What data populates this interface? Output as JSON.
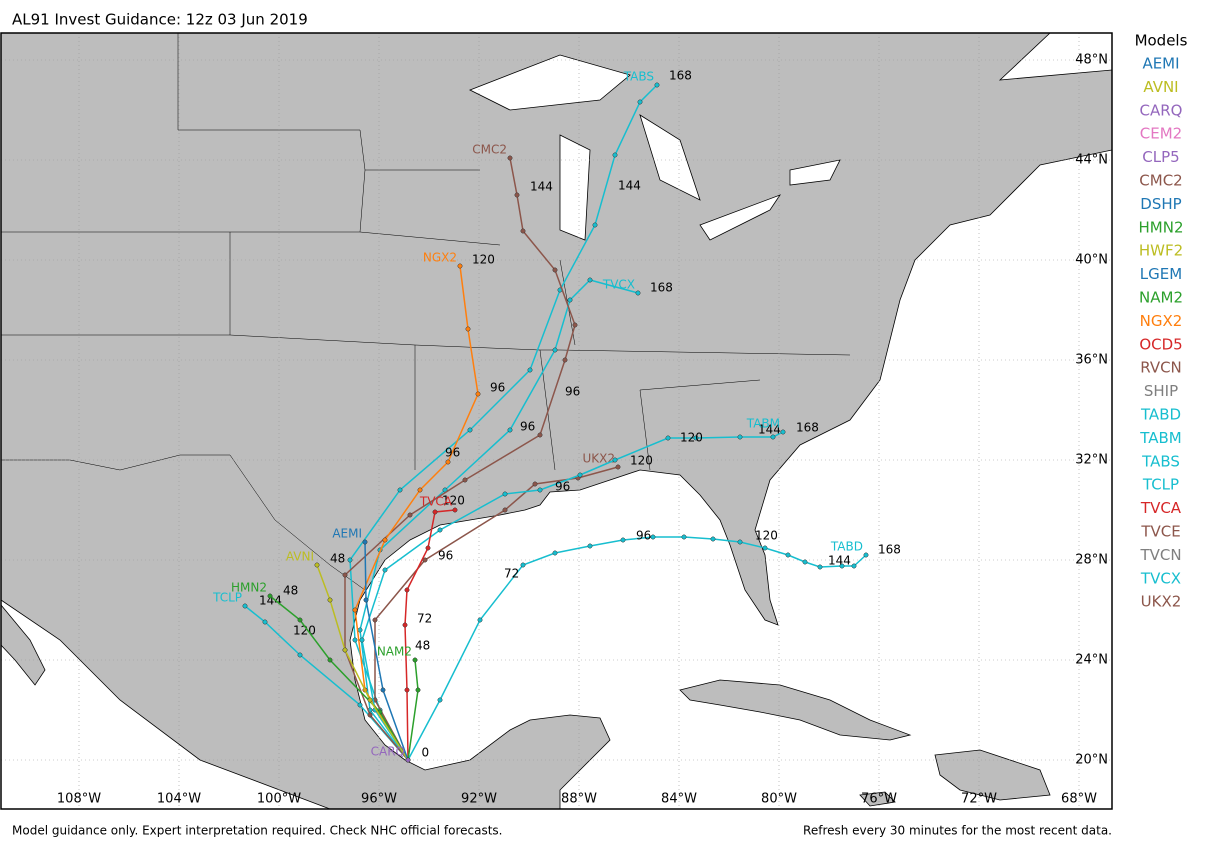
{
  "title": "AL91 Invest Guidance: 12z 03 Jun 2019",
  "legend_title": "Models",
  "models": [
    {
      "name": "AEMI",
      "color": "#1f77b4"
    },
    {
      "name": "AVNI",
      "color": "#bcbd22"
    },
    {
      "name": "CARQ",
      "color": "#9467bd"
    },
    {
      "name": "CEM2",
      "color": "#e377c2"
    },
    {
      "name": "CLP5",
      "color": "#9467bd"
    },
    {
      "name": "CMC2",
      "color": "#8c564b"
    },
    {
      "name": "DSHP",
      "color": "#1f77b4"
    },
    {
      "name": "HMN2",
      "color": "#2ca02c"
    },
    {
      "name": "HWF2",
      "color": "#bcbd22"
    },
    {
      "name": "LGEM",
      "color": "#1f77b4"
    },
    {
      "name": "NAM2",
      "color": "#2ca02c"
    },
    {
      "name": "NGX2",
      "color": "#ff7f0e"
    },
    {
      "name": "OCD5",
      "color": "#d62728"
    },
    {
      "name": "RVCN",
      "color": "#8c564b"
    },
    {
      "name": "SHIP",
      "color": "#7f7f7f"
    },
    {
      "name": "TABD",
      "color": "#17becf"
    },
    {
      "name": "TABM",
      "color": "#17becf"
    },
    {
      "name": "TABS",
      "color": "#17becf"
    },
    {
      "name": "TCLP",
      "color": "#17becf"
    },
    {
      "name": "TVCA",
      "color": "#d62728"
    },
    {
      "name": "TVCE",
      "color": "#8c564b"
    },
    {
      "name": "TVCN",
      "color": "#7f7f7f"
    },
    {
      "name": "TVCX",
      "color": "#17becf"
    },
    {
      "name": "UKX2",
      "color": "#8c564b"
    }
  ],
  "lonlim": [
    -111.12,
    -66.68
  ],
  "latlim": [
    18.04,
    49.08
  ],
  "lon_ticks": [
    {
      "value": -108,
      "label": "108°W"
    },
    {
      "value": -104,
      "label": "104°W"
    },
    {
      "value": -100,
      "label": "100°W"
    },
    {
      "value": -96,
      "label": "96°W"
    },
    {
      "value": -92,
      "label": "92°W"
    },
    {
      "value": -88,
      "label": "88°W"
    },
    {
      "value": -84,
      "label": "84°W"
    },
    {
      "value": -80,
      "label": "80°W"
    },
    {
      "value": -76,
      "label": "76°W"
    },
    {
      "value": -72,
      "label": "72°W"
    },
    {
      "value": -68,
      "label": "68°W"
    }
  ],
  "lat_ticks": [
    {
      "value": 20,
      "label": "20°N"
    },
    {
      "value": 24,
      "label": "24°N"
    },
    {
      "value": 28,
      "label": "28°N"
    },
    {
      "value": 32,
      "label": "32°N"
    },
    {
      "value": 36,
      "label": "36°N"
    },
    {
      "value": 40,
      "label": "40°N"
    },
    {
      "value": 44,
      "label": "44°N"
    },
    {
      "value": 48,
      "label": "48°N"
    }
  ],
  "tracks": [
    {
      "name": "TABS",
      "color": "#17becf",
      "lons": [
        -94.84,
        -95.96,
        -96.96,
        -97.16,
        -95.16,
        -92.36,
        -89.96,
        -88.76,
        -87.36,
        -86.56,
        -85.56,
        -84.88
      ],
      "lats": [
        20.0,
        22.0,
        24.8,
        28.0,
        30.8,
        33.2,
        35.6,
        38.8,
        41.4,
        44.2,
        46.32,
        47.0
      ],
      "labels": [
        {
          "text": "96",
          "lon": -90.36,
          "lat": 33.32
        },
        {
          "text": "144",
          "lon": -86.44,
          "lat": 42.96
        },
        {
          "text": "168",
          "lon": -84.4,
          "lat": 47.36
        }
      ]
    },
    {
      "name": "TCLP",
      "color": "#17becf",
      "lons": [
        -94.84,
        -96.76,
        -99.16,
        -100.56,
        -101.36
      ],
      "lats": [
        20.0,
        22.2,
        24.2,
        25.52,
        26.16
      ],
      "labels": [
        {
          "text": "120",
          "lon": -99.44,
          "lat": 25.16
        },
        {
          "text": "144",
          "lon": -100.8,
          "lat": 26.36
        }
      ]
    },
    {
      "name": "TVCX",
      "color": "#17becf",
      "lons": [
        -94.84,
        -96.36,
        -96.76,
        -95.96,
        -93.36,
        -90.76,
        -88.96,
        -88.36,
        -87.56,
        -85.64
      ],
      "lats": [
        20.0,
        22.0,
        25.2,
        28.4,
        30.8,
        33.2,
        36.4,
        38.4,
        39.2,
        38.68
      ],
      "labels": [
        {
          "text": "168",
          "lon": -85.16,
          "lat": 38.88
        }
      ]
    },
    {
      "name": "CMC2",
      "color": "#8c564b",
      "lons": [
        -94.84,
        -96.36,
        -97.36,
        -97.36,
        -94.76,
        -92.56,
        -89.56,
        -88.56,
        -88.16,
        -88.96,
        -90.24,
        -90.48,
        -90.76
      ],
      "lats": [
        20.0,
        21.8,
        24.4,
        27.4,
        29.8,
        31.2,
        33.0,
        36.0,
        37.4,
        39.6,
        41.16,
        42.6,
        44.08
      ],
      "labels": [
        {
          "text": "96",
          "lon": -88.56,
          "lat": 34.72
        },
        {
          "text": "144",
          "lon": -89.96,
          "lat": 42.92
        }
      ]
    },
    {
      "name": "NGX2",
      "color": "#ff7f0e",
      "lons": [
        -94.84,
        -96.56,
        -96.96,
        -95.76,
        -94.36,
        -93.24,
        -92.04,
        -92.44,
        -92.76
      ],
      "lats": [
        20.0,
        22.8,
        26.0,
        28.8,
        30.8,
        31.92,
        34.64,
        37.24,
        39.76
      ],
      "labels": [
        {
          "text": "96",
          "lon": -93.36,
          "lat": 32.28
        },
        {
          "text": "96",
          "lon": -91.56,
          "lat": 34.88
        },
        {
          "text": "120",
          "lon": -92.28,
          "lat": 40.0
        }
      ]
    },
    {
      "name": "UKX2",
      "color": "#8c564b",
      "lons": [
        -94.84,
        -96.16,
        -96.16,
        -94.16,
        -90.96,
        -89.76,
        -88.04,
        -86.44
      ],
      "lats": [
        20.0,
        22.4,
        25.6,
        28.0,
        30.0,
        31.04,
        31.28,
        31.72
      ],
      "labels": [
        {
          "text": "120",
          "lon": -85.96,
          "lat": 31.96
        }
      ]
    },
    {
      "name": "TABD",
      "color": "#17becf",
      "lons": [
        -94.84,
        -93.56,
        -91.96,
        -90.24,
        -88.96,
        -87.56,
        -86.24,
        -85.04,
        -83.8,
        -82.64,
        -81.56,
        -80.56,
        -79.64,
        -78.96,
        -78.36,
        -77.48,
        -77.0,
        -76.52
      ],
      "lats": [
        20.0,
        22.4,
        25.6,
        27.8,
        28.28,
        28.56,
        28.8,
        28.92,
        28.92,
        28.84,
        28.72,
        28.48,
        28.2,
        27.92,
        27.72,
        27.76,
        27.76,
        28.2
      ],
      "labels": [
        {
          "text": "72",
          "lon": -91.0,
          "lat": 27.44
        },
        {
          "text": "96",
          "lon": -85.72,
          "lat": 28.96
        },
        {
          "text": "120",
          "lon": -80.96,
          "lat": 28.96
        },
        {
          "text": "144",
          "lon": -78.04,
          "lat": 27.96
        },
        {
          "text": "168",
          "lon": -76.04,
          "lat": 28.4
        }
      ]
    },
    {
      "name": "TABM",
      "color": "#17becf",
      "lons": [
        -94.84,
        -96.16,
        -96.68,
        -95.76,
        -93.56,
        -90.96,
        -89.56,
        -87.96,
        -86.56,
        -84.44,
        -83.32,
        -81.56,
        -80.24,
        -79.84
      ],
      "lats": [
        20.0,
        22.0,
        24.8,
        27.6,
        29.2,
        30.64,
        30.8,
        31.4,
        32.0,
        32.88,
        32.88,
        32.92,
        32.92,
        33.12
      ],
      "labels": [
        {
          "text": "96",
          "lon": -88.96,
          "lat": 30.92
        },
        {
          "text": "120",
          "lon": -83.96,
          "lat": 32.88
        },
        {
          "text": "144",
          "lon": -80.84,
          "lat": 33.2
        },
        {
          "text": "168",
          "lon": -79.32,
          "lat": 33.28
        }
      ]
    },
    {
      "name": "TVCA",
      "color": "#d62728",
      "lons": [
        -94.84,
        -94.88,
        -94.96,
        -94.88,
        -94.04,
        -93.76,
        -92.96
      ],
      "lats": [
        20.0,
        22.8,
        25.4,
        26.8,
        28.48,
        29.92,
        30.0
      ],
      "labels": [
        {
          "text": "72",
          "lon": -94.48,
          "lat": 25.64
        },
        {
          "text": "96",
          "lon": -93.64,
          "lat": 28.16
        },
        {
          "text": "120",
          "lon": -93.48,
          "lat": 30.36
        }
      ]
    },
    {
      "name": "HMN2",
      "color": "#2ca02c",
      "lons": [
        -94.84,
        -95.96,
        -97.96,
        -99.16,
        -100.36
      ],
      "lats": [
        20.0,
        21.92,
        24.0,
        25.6,
        26.56
      ],
      "labels": [
        {
          "text": "48",
          "lon": -99.84,
          "lat": 26.76
        }
      ]
    },
    {
      "name": "AVNI",
      "color": "#bcbd22",
      "lons": [
        -94.84,
        -96.36,
        -97.36,
        -97.96,
        -98.48
      ],
      "lats": [
        20.0,
        22.4,
        24.4,
        26.4,
        27.8
      ],
      "labels": [
        {
          "text": "48",
          "lon": -97.96,
          "lat": 28.04
        }
      ]
    },
    {
      "name": "AEMI",
      "color": "#1f77b4",
      "lons": [
        -94.84,
        -95.84,
        -96.52,
        -96.56
      ],
      "lats": [
        20.0,
        22.8,
        26.4,
        28.72
      ],
      "labels": []
    },
    {
      "name": "NAM2",
      "color": "#2ca02c",
      "lons": [
        -94.84,
        -94.44,
        -94.56
      ],
      "lats": [
        20.0,
        22.8,
        24.0
      ],
      "labels": [
        {
          "text": "48",
          "lon": -94.56,
          "lat": 24.56
        }
      ]
    },
    {
      "name": "CARQ",
      "color": "#9467bd",
      "lons": [
        -94.84
      ],
      "lats": [
        20.0
      ],
      "labels": [
        {
          "text": "0",
          "lon": -94.3,
          "lat": 20.28
        }
      ]
    }
  ],
  "footer_left": "Model guidance only. Expert interpretation required. Check NHC official forecasts.",
  "footer_right": "Refresh every 30 minutes for the most recent data."
}
